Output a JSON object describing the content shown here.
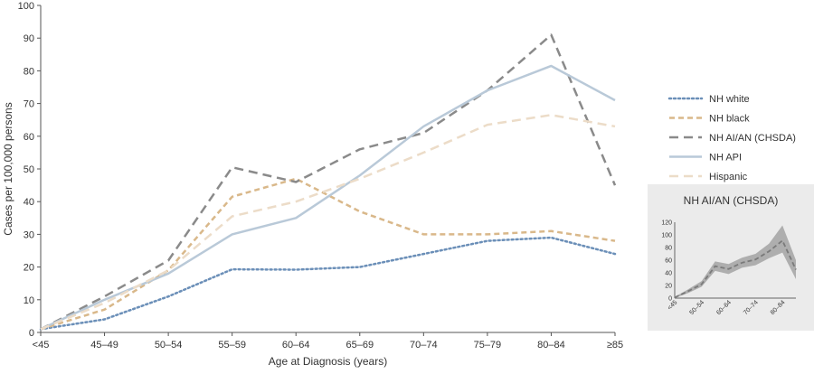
{
  "chart_data": [
    {
      "type": "line",
      "title": "",
      "xlabel": "Age at Diagnosis (years)",
      "ylabel": "Cases per 100,000 persons",
      "ylim": [
        0,
        100
      ],
      "yticks": [
        0,
        10,
        20,
        30,
        40,
        50,
        60,
        70,
        80,
        90,
        100
      ],
      "categories": [
        "<45",
        "45–49",
        "50–54",
        "55–59",
        "60–64",
        "65–69",
        "70–74",
        "75–79",
        "80–84",
        "≥85"
      ],
      "grid": false,
      "legend_position": "right",
      "series": [
        {
          "name": "NH white",
          "color": "#6b8fb8",
          "dash": "dotted",
          "values": [
            1,
            4,
            11,
            19.3,
            19.2,
            20,
            24,
            28,
            29,
            24
          ]
        },
        {
          "name": "NH black",
          "color": "#d9b88a",
          "dash": "dashed",
          "values": [
            1,
            7,
            19,
            41.5,
            47,
            37,
            30,
            30,
            31,
            28
          ]
        },
        {
          "name": "NH AI/AN (CHSDA)",
          "color": "#8a8a8a",
          "dash": "longdash",
          "values": [
            1,
            11,
            22,
            50.5,
            46,
            56,
            61,
            74,
            91,
            45
          ]
        },
        {
          "name": "NH API",
          "color": "#b9c9d8",
          "dash": "solid",
          "values": [
            1,
            10,
            18,
            30,
            35,
            48,
            63,
            74,
            81.5,
            71
          ]
        },
        {
          "name": "Hispanic",
          "color": "#ecdcc8",
          "dash": "longdash",
          "values": [
            1,
            9,
            19,
            35.5,
            40,
            47,
            55,
            63.5,
            66.5,
            63
          ]
        }
      ]
    },
    {
      "type": "line",
      "title": "NH AI/AN (CHSDA)",
      "ylim": [
        0,
        120
      ],
      "yticks": [
        0,
        20,
        40,
        60,
        80,
        100,
        120
      ],
      "categories": [
        "<45",
        "45–49",
        "50–54",
        "55–59",
        "60–64",
        "65–69",
        "70–74",
        "75–79",
        "80–84",
        "≥85"
      ],
      "tick_labels": [
        "<45",
        "50–54",
        "60–64",
        "70–74",
        "80–84"
      ],
      "band_color": "#9a9a9a",
      "series": [
        {
          "name": "NH AI/AN (CHSDA)",
          "color": "#7a7a7a",
          "dash": "longdash",
          "values": [
            1,
            11,
            22,
            50.5,
            46,
            56,
            61,
            74,
            91,
            45
          ]
        }
      ],
      "band": {
        "lower": [
          0,
          8,
          18,
          43,
          38,
          48,
          52,
          63,
          72,
          30
        ],
        "upper": [
          2,
          14,
          27,
          58,
          54,
          64,
          70,
          86,
          115,
          60
        ]
      }
    }
  ]
}
